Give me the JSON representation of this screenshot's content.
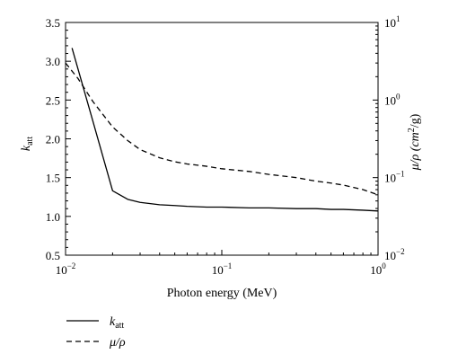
{
  "chart_data": {
    "type": "line",
    "title": "",
    "xlabel": "Photon energy (MeV)",
    "ylabel_left": {
      "base": "k",
      "sub": "att"
    },
    "ylabel_right": {
      "base": "μ/ρ (cm",
      "sup": "2",
      "tail": "/g)"
    },
    "x_scale": "log",
    "xlim": [
      0.01,
      1
    ],
    "x_ticks": [
      {
        "value": 0.01,
        "base": "10",
        "exp": "−2"
      },
      {
        "value": 0.1,
        "base": "10",
        "exp": "−1"
      },
      {
        "value": 1,
        "base": "10",
        "exp": "0"
      }
    ],
    "ylim_left": [
      0.5,
      3.5
    ],
    "y_ticks_left": [
      "0.5",
      "1.0",
      "1.5",
      "2.0",
      "2.5",
      "3.0",
      "3.5"
    ],
    "y_scale_right": "log",
    "ylim_right": [
      0.01,
      10
    ],
    "y_ticks_right": [
      {
        "value": 0.01,
        "base": "10",
        "exp": "−2"
      },
      {
        "value": 0.1,
        "base": "10",
        "exp": "−1"
      },
      {
        "value": 1,
        "base": "10",
        "exp": "0"
      },
      {
        "value": 10,
        "base": "10",
        "exp": "1"
      }
    ],
    "grid": false,
    "legend_placement": "below-left",
    "series": [
      {
        "name": "k_att",
        "legend": {
          "base": "k",
          "sub": "att"
        },
        "axis": "left",
        "style": "solid",
        "x": [
          0.011,
          0.015,
          0.02,
          0.025,
          0.03,
          0.04,
          0.05,
          0.06,
          0.08,
          0.1,
          0.15,
          0.2,
          0.3,
          0.4,
          0.5,
          0.6,
          0.8,
          1.0
        ],
        "y": [
          3.17,
          2.22,
          1.33,
          1.22,
          1.18,
          1.15,
          1.14,
          1.13,
          1.12,
          1.12,
          1.11,
          1.11,
          1.1,
          1.1,
          1.09,
          1.09,
          1.08,
          1.07
        ]
      },
      {
        "name": "μ/ρ",
        "legend": {
          "base": "μ/ρ"
        },
        "axis": "right",
        "style": "dashed",
        "x": [
          0.01,
          0.012,
          0.015,
          0.02,
          0.025,
          0.03,
          0.04,
          0.05,
          0.06,
          0.08,
          0.1,
          0.15,
          0.2,
          0.3,
          0.4,
          0.5,
          0.6,
          0.8,
          1.0
        ],
        "y": [
          3.0,
          1.9,
          0.95,
          0.45,
          0.3,
          0.23,
          0.18,
          0.16,
          0.15,
          0.14,
          0.13,
          0.12,
          0.11,
          0.1,
          0.09,
          0.085,
          0.08,
          0.07,
          0.06
        ]
      }
    ]
  }
}
